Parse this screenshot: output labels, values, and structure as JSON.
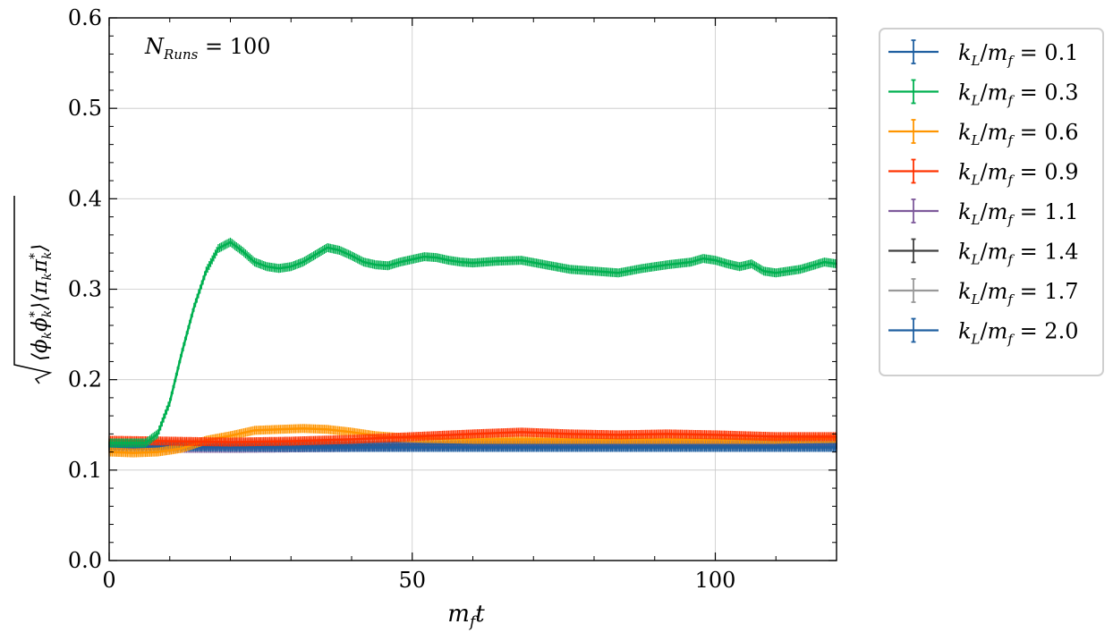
{
  "chart_data": {
    "type": "line",
    "ylabel": "√⟨ϕₖϕₖ*⟩⟨πₖπₖ*⟩",
    "xlabel": "m_f t",
    "annotation": "N_Runs = 100",
    "xlim": [
      0,
      120
    ],
    "ylim": [
      0,
      0.6
    ],
    "xticks": [
      "0",
      "50",
      "100"
    ],
    "yticks": [
      "0.0",
      "0.1",
      "0.2",
      "0.3",
      "0.4",
      "0.5",
      "0.6"
    ],
    "grid": true,
    "legend_placement": "outside-right",
    "series": [
      {
        "name": "k_L/m_f = 0.1",
        "color": "#1f5fa0",
        "points": [
          [
            0,
            0.126
          ],
          [
            30,
            0.125
          ],
          [
            60,
            0.125
          ],
          [
            90,
            0.125
          ],
          [
            120,
            0.125
          ]
        ]
      },
      {
        "name": "k_L/m_f = 0.3",
        "color": "#00b050",
        "points": [
          [
            0,
            0.13
          ],
          [
            6,
            0.13
          ],
          [
            8,
            0.14
          ],
          [
            10,
            0.175
          ],
          [
            12,
            0.23
          ],
          [
            14,
            0.28
          ],
          [
            16,
            0.32
          ],
          [
            18,
            0.345
          ],
          [
            20,
            0.352
          ],
          [
            22,
            0.342
          ],
          [
            24,
            0.33
          ],
          [
            26,
            0.325
          ],
          [
            28,
            0.323
          ],
          [
            30,
            0.325
          ],
          [
            32,
            0.33
          ],
          [
            34,
            0.338
          ],
          [
            36,
            0.346
          ],
          [
            38,
            0.343
          ],
          [
            40,
            0.337
          ],
          [
            42,
            0.33
          ],
          [
            44,
            0.327
          ],
          [
            46,
            0.326
          ],
          [
            48,
            0.33
          ],
          [
            50,
            0.333
          ],
          [
            52,
            0.336
          ],
          [
            54,
            0.335
          ],
          [
            56,
            0.332
          ],
          [
            58,
            0.33
          ],
          [
            60,
            0.329
          ],
          [
            64,
            0.331
          ],
          [
            68,
            0.332
          ],
          [
            72,
            0.327
          ],
          [
            76,
            0.322
          ],
          [
            80,
            0.32
          ],
          [
            84,
            0.318
          ],
          [
            88,
            0.323
          ],
          [
            92,
            0.327
          ],
          [
            96,
            0.33
          ],
          [
            98,
            0.334
          ],
          [
            100,
            0.332
          ],
          [
            102,
            0.328
          ],
          [
            104,
            0.325
          ],
          [
            106,
            0.328
          ],
          [
            108,
            0.32
          ],
          [
            110,
            0.318
          ],
          [
            114,
            0.322
          ],
          [
            118,
            0.33
          ],
          [
            120,
            0.328
          ]
        ]
      },
      {
        "name": "k_L/m_f = 0.6",
        "color": "#ff9500",
        "points": [
          [
            0,
            0.12
          ],
          [
            4,
            0.119
          ],
          [
            8,
            0.12
          ],
          [
            12,
            0.124
          ],
          [
            16,
            0.133
          ],
          [
            20,
            0.138
          ],
          [
            24,
            0.144
          ],
          [
            28,
            0.145
          ],
          [
            32,
            0.146
          ],
          [
            36,
            0.145
          ],
          [
            40,
            0.142
          ],
          [
            44,
            0.138
          ],
          [
            48,
            0.136
          ],
          [
            52,
            0.135
          ],
          [
            60,
            0.134
          ],
          [
            70,
            0.134
          ],
          [
            80,
            0.134
          ],
          [
            90,
            0.134
          ],
          [
            100,
            0.134
          ],
          [
            110,
            0.134
          ],
          [
            120,
            0.135
          ]
        ]
      },
      {
        "name": "k_L/m_f = 0.9",
        "color": "#ff3300",
        "points": [
          [
            0,
            0.133
          ],
          [
            10,
            0.132
          ],
          [
            20,
            0.131
          ],
          [
            30,
            0.132
          ],
          [
            40,
            0.134
          ],
          [
            50,
            0.137
          ],
          [
            60,
            0.14
          ],
          [
            68,
            0.142
          ],
          [
            76,
            0.14
          ],
          [
            84,
            0.139
          ],
          [
            92,
            0.14
          ],
          [
            100,
            0.139
          ],
          [
            110,
            0.137
          ],
          [
            120,
            0.137
          ]
        ]
      },
      {
        "name": "k_L/m_f = 1.1",
        "color": "#7e5a9b",
        "points": [
          [
            0,
            0.124
          ],
          [
            20,
            0.124
          ],
          [
            40,
            0.125
          ],
          [
            60,
            0.127
          ],
          [
            80,
            0.128
          ],
          [
            100,
            0.129
          ],
          [
            120,
            0.128
          ]
        ]
      },
      {
        "name": "k_L/m_f = 1.4",
        "color": "#404040",
        "points": [
          [
            0,
            0.127
          ],
          [
            30,
            0.127
          ],
          [
            60,
            0.128
          ],
          [
            90,
            0.128
          ],
          [
            120,
            0.128
          ]
        ]
      },
      {
        "name": "k_L/m_f = 1.7",
        "color": "#999999",
        "points": [
          [
            0,
            0.13
          ],
          [
            30,
            0.13
          ],
          [
            60,
            0.131
          ],
          [
            90,
            0.131
          ],
          [
            120,
            0.131
          ]
        ]
      },
      {
        "name": "k_L/m_f = 2.0",
        "color": "#1f5fa0",
        "points": [
          [
            0,
            0.127
          ],
          [
            30,
            0.126
          ],
          [
            60,
            0.126
          ],
          [
            90,
            0.126
          ],
          [
            120,
            0.126
          ]
        ]
      }
    ]
  }
}
